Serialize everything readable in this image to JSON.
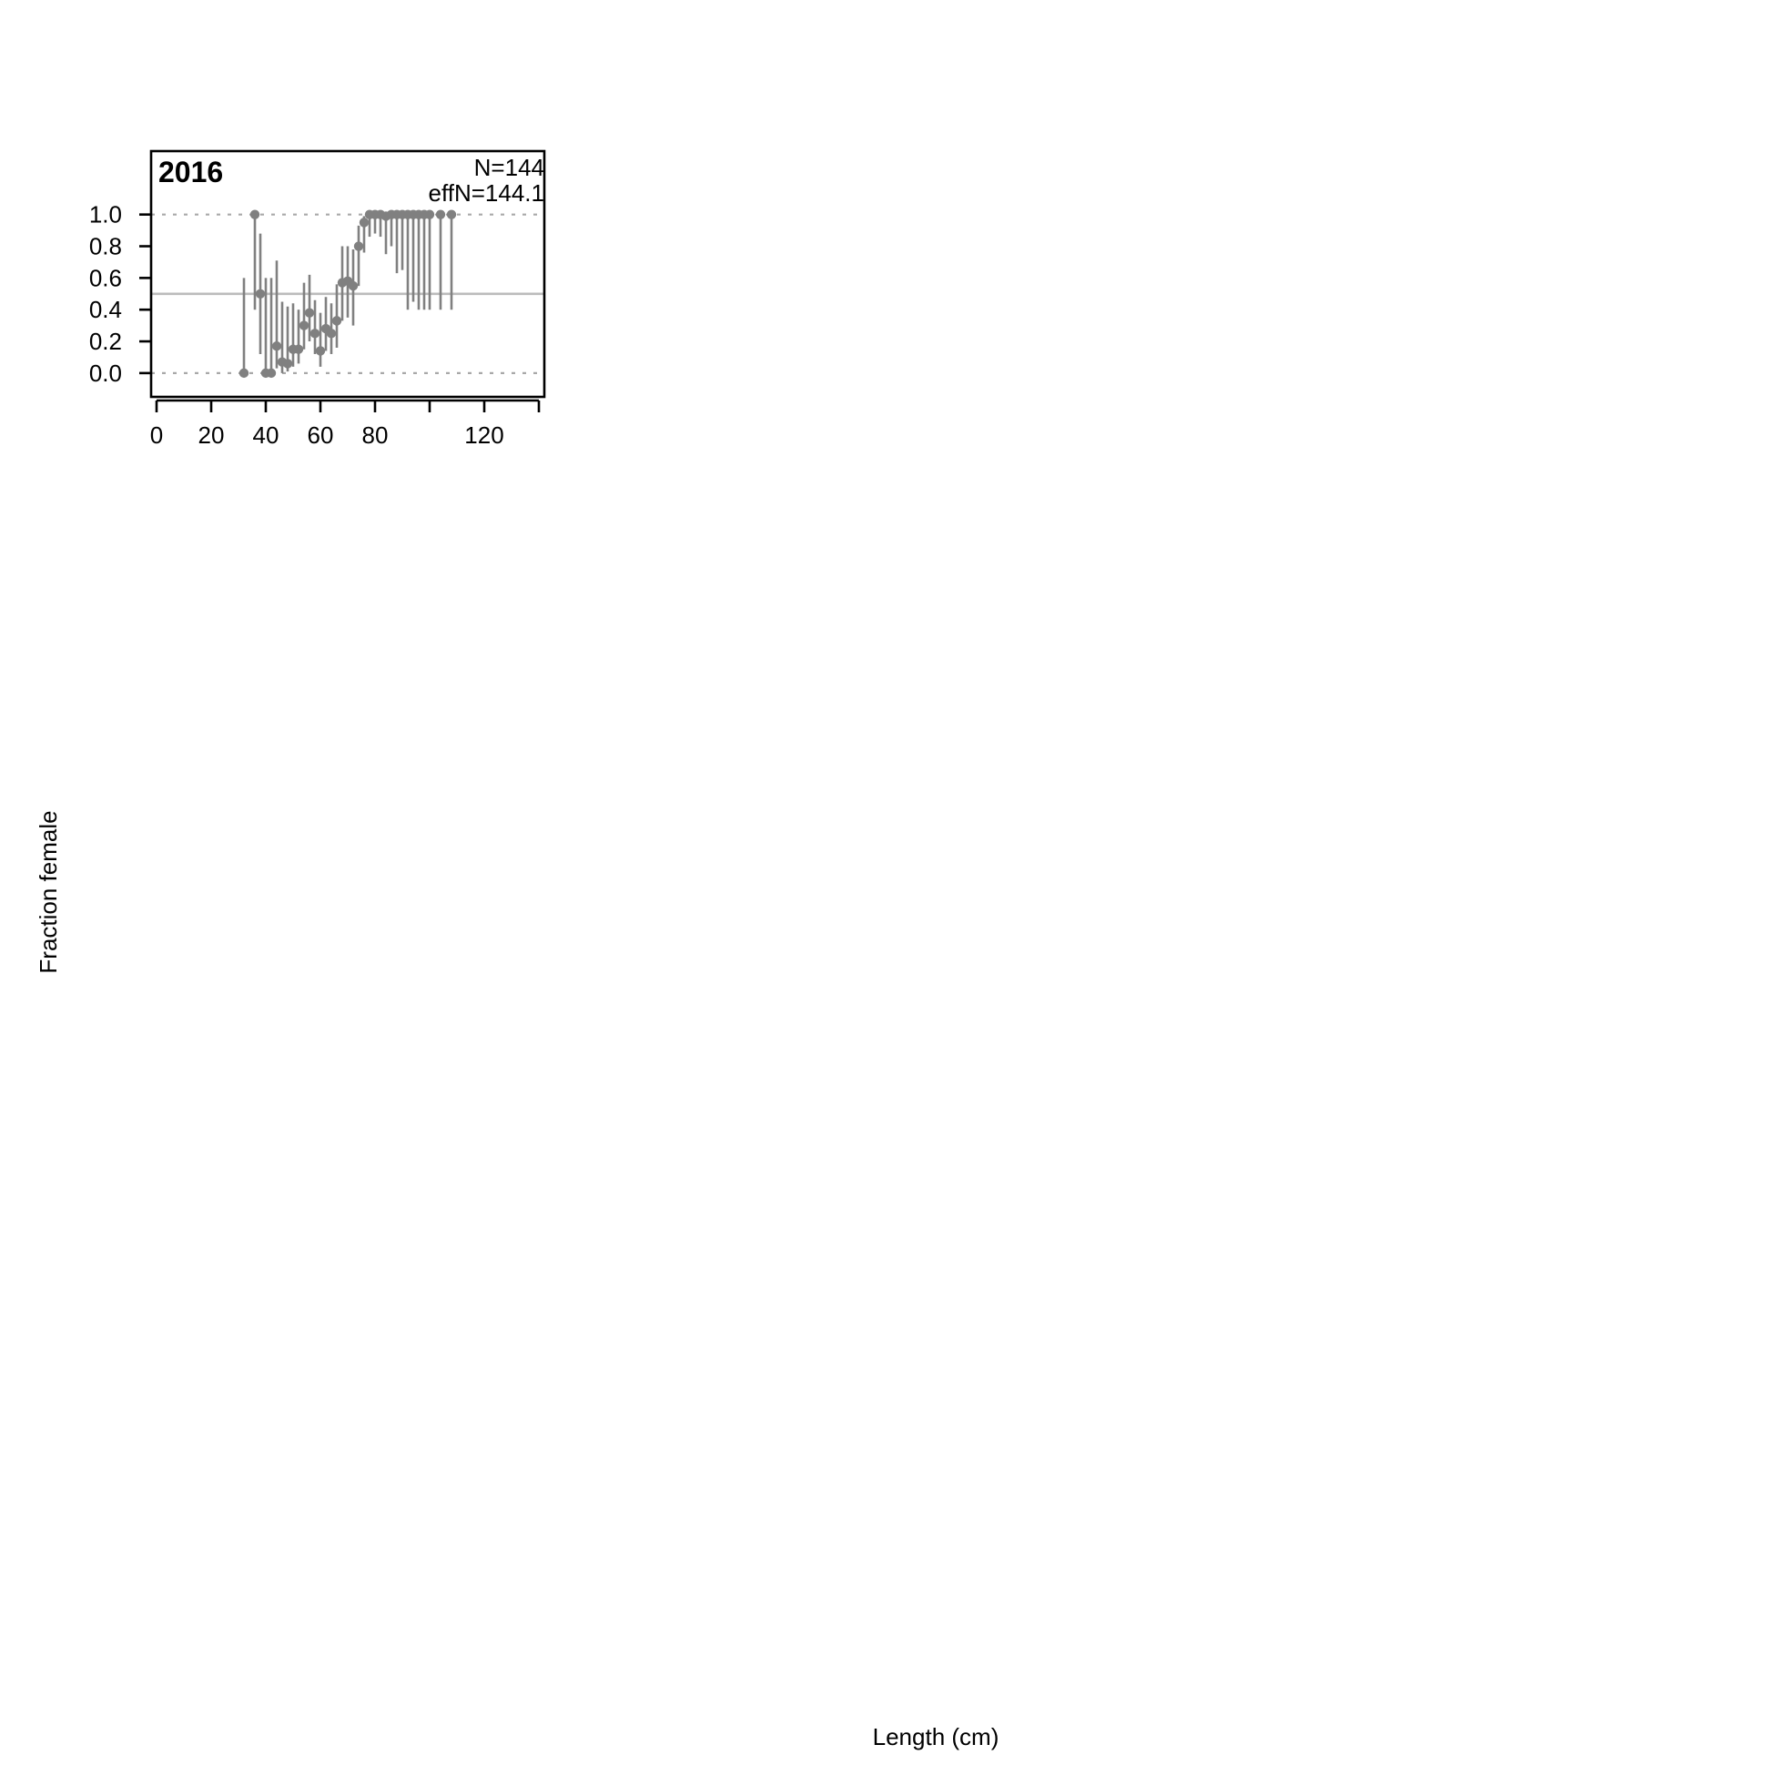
{
  "chart_data": {
    "type": "scatter",
    "title": "2016",
    "annotations": [
      "N=144",
      "effN=144.1"
    ],
    "xlabel": "Length (cm)",
    "ylabel": "Fraction female",
    "xlim": [
      -2,
      142
    ],
    "ylim": [
      -0.15,
      1.4
    ],
    "xticks": [
      0,
      20,
      40,
      60,
      80,
      100,
      120,
      140
    ],
    "xtick_labels": [
      "0",
      "20",
      "40",
      "60",
      "80",
      "",
      "120",
      ""
    ],
    "yticks": [
      0.0,
      0.2,
      0.4,
      0.6,
      0.8,
      1.0
    ],
    "ytick_labels": [
      "0.0",
      "0.2",
      "0.4",
      "0.6",
      "0.8",
      "1.0"
    ],
    "reference_lines": {
      "dotted": [
        0,
        1
      ],
      "solid": [
        0.5
      ]
    },
    "grid": false,
    "colors": {
      "points": "#808080",
      "dotted_reference": "#a8a8a8",
      "solid_reference": "#bcbcbc",
      "frame": "#000000"
    },
    "points": [
      {
        "x": 32,
        "y": 0.0,
        "lo": 0.0,
        "hi": 0.6
      },
      {
        "x": 36,
        "y": 1.0,
        "lo": 0.4,
        "hi": 1.0
      },
      {
        "x": 38,
        "y": 0.5,
        "lo": 0.12,
        "hi": 0.88
      },
      {
        "x": 40,
        "y": 0.0,
        "lo": 0.0,
        "hi": 0.6
      },
      {
        "x": 42,
        "y": 0.0,
        "lo": 0.0,
        "hi": 0.6
      },
      {
        "x": 44,
        "y": 0.17,
        "lo": 0.03,
        "hi": 0.71
      },
      {
        "x": 46,
        "y": 0.07,
        "lo": 0.0,
        "hi": 0.45
      },
      {
        "x": 48,
        "y": 0.06,
        "lo": 0.01,
        "hi": 0.42
      },
      {
        "x": 50,
        "y": 0.15,
        "lo": 0.04,
        "hi": 0.44
      },
      {
        "x": 52,
        "y": 0.15,
        "lo": 0.06,
        "hi": 0.4
      },
      {
        "x": 54,
        "y": 0.3,
        "lo": 0.15,
        "hi": 0.57
      },
      {
        "x": 56,
        "y": 0.38,
        "lo": 0.2,
        "hi": 0.62
      },
      {
        "x": 58,
        "y": 0.25,
        "lo": 0.12,
        "hi": 0.46
      },
      {
        "x": 60,
        "y": 0.14,
        "lo": 0.04,
        "hi": 0.38
      },
      {
        "x": 62,
        "y": 0.28,
        "lo": 0.14,
        "hi": 0.48
      },
      {
        "x": 64,
        "y": 0.25,
        "lo": 0.12,
        "hi": 0.44
      },
      {
        "x": 66,
        "y": 0.33,
        "lo": 0.16,
        "hi": 0.56
      },
      {
        "x": 68,
        "y": 0.57,
        "lo": 0.33,
        "hi": 0.8
      },
      {
        "x": 70,
        "y": 0.58,
        "lo": 0.35,
        "hi": 0.8
      },
      {
        "x": 72,
        "y": 0.55,
        "lo": 0.3,
        "hi": 0.78
      },
      {
        "x": 74,
        "y": 0.8,
        "lo": 0.55,
        "hi": 0.93
      },
      {
        "x": 76,
        "y": 0.95,
        "lo": 0.76,
        "hi": 0.99
      },
      {
        "x": 78,
        "y": 1.0,
        "lo": 0.86,
        "hi": 1.0
      },
      {
        "x": 80,
        "y": 1.0,
        "lo": 0.88,
        "hi": 1.0
      },
      {
        "x": 82,
        "y": 1.0,
        "lo": 0.86,
        "hi": 1.0
      },
      {
        "x": 84,
        "y": 0.99,
        "lo": 0.75,
        "hi": 1.0
      },
      {
        "x": 86,
        "y": 1.0,
        "lo": 0.8,
        "hi": 1.0
      },
      {
        "x": 88,
        "y": 1.0,
        "lo": 0.63,
        "hi": 1.0
      },
      {
        "x": 90,
        "y": 1.0,
        "lo": 0.65,
        "hi": 1.0
      },
      {
        "x": 92,
        "y": 1.0,
        "lo": 0.4,
        "hi": 1.0
      },
      {
        "x": 94,
        "y": 1.0,
        "lo": 0.45,
        "hi": 1.0
      },
      {
        "x": 96,
        "y": 1.0,
        "lo": 0.4,
        "hi": 1.0
      },
      {
        "x": 98,
        "y": 1.0,
        "lo": 0.4,
        "hi": 1.0
      },
      {
        "x": 100,
        "y": 1.0,
        "lo": 0.4,
        "hi": 1.0
      },
      {
        "x": 104,
        "y": 1.0,
        "lo": 0.4,
        "hi": 1.0
      },
      {
        "x": 108,
        "y": 1.0,
        "lo": 0.4,
        "hi": 1.0
      }
    ]
  }
}
